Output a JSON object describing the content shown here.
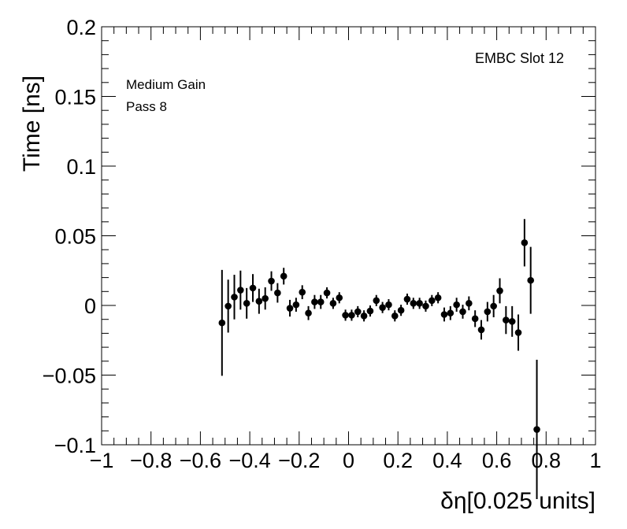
{
  "chart_data": {
    "type": "scatter",
    "xlabel": "δη[0.025 units]",
    "ylabel": "Time [ns]",
    "xlim": [
      -1,
      1
    ],
    "ylim": [
      -0.1,
      0.2
    ],
    "grid": false,
    "xticks": [
      {
        "value": -1,
        "label": "−1"
      },
      {
        "value": -0.8,
        "label": "−0.8"
      },
      {
        "value": -0.6,
        "label": "−0.6"
      },
      {
        "value": -0.4,
        "label": "−0.4"
      },
      {
        "value": -0.2,
        "label": "−0.2"
      },
      {
        "value": 0,
        "label": "0"
      },
      {
        "value": 0.2,
        "label": "0.2"
      },
      {
        "value": 0.4,
        "label": "0.4"
      },
      {
        "value": 0.6,
        "label": "0.6"
      },
      {
        "value": 0.8,
        "label": "0.8"
      },
      {
        "value": 1,
        "label": "1"
      }
    ],
    "yticks": [
      {
        "value": -0.1,
        "label": "−0.1"
      },
      {
        "value": -0.05,
        "label": "−0.05"
      },
      {
        "value": 0,
        "label": "0"
      },
      {
        "value": 0.05,
        "label": "0.05"
      },
      {
        "value": 0.1,
        "label": "0.1"
      },
      {
        "value": 0.15,
        "label": "0.15"
      },
      {
        "value": 0.2,
        "label": "0.2"
      }
    ],
    "annotations": {
      "top_left": [
        "Medium Gain",
        "Pass 8"
      ],
      "top_right": "EMBC Slot 12"
    },
    "series": [
      {
        "marker_color": "#000000",
        "points": [
          {
            "x": -0.5125,
            "y": -0.0125,
            "err": 0.038
          },
          {
            "x": -0.4875,
            "y": -0.0005,
            "err": 0.019
          },
          {
            "x": -0.4625,
            "y": 0.006,
            "err": 0.016
          },
          {
            "x": -0.4375,
            "y": 0.011,
            "err": 0.014
          },
          {
            "x": -0.4125,
            "y": 0.0015,
            "err": 0.011
          },
          {
            "x": -0.3875,
            "y": 0.0125,
            "err": 0.01
          },
          {
            "x": -0.3625,
            "y": 0.003,
            "err": 0.009
          },
          {
            "x": -0.3375,
            "y": 0.005,
            "err": 0.008
          },
          {
            "x": -0.3125,
            "y": 0.0175,
            "err": 0.007
          },
          {
            "x": -0.2875,
            "y": 0.009,
            "err": 0.007
          },
          {
            "x": -0.2625,
            "y": 0.021,
            "err": 0.006
          },
          {
            "x": -0.2375,
            "y": -0.002,
            "err": 0.006
          },
          {
            "x": -0.2125,
            "y": 0.0005,
            "err": 0.005
          },
          {
            "x": -0.1875,
            "y": 0.0095,
            "err": 0.005
          },
          {
            "x": -0.1625,
            "y": -0.0055,
            "err": 0.005
          },
          {
            "x": -0.1375,
            "y": 0.0025,
            "err": 0.005
          },
          {
            "x": -0.1125,
            "y": 0.0025,
            "err": 0.005
          },
          {
            "x": -0.0875,
            "y": 0.009,
            "err": 0.004
          },
          {
            "x": -0.0625,
            "y": 0.0015,
            "err": 0.004
          },
          {
            "x": -0.0375,
            "y": 0.0055,
            "err": 0.004
          },
          {
            "x": -0.0125,
            "y": -0.007,
            "err": 0.004
          },
          {
            "x": 0.0125,
            "y": -0.007,
            "err": 0.004
          },
          {
            "x": 0.0375,
            "y": -0.0045,
            "err": 0.004
          },
          {
            "x": 0.0625,
            "y": -0.0075,
            "err": 0.004
          },
          {
            "x": 0.0875,
            "y": -0.004,
            "err": 0.004
          },
          {
            "x": 0.1125,
            "y": 0.0035,
            "err": 0.004
          },
          {
            "x": 0.1375,
            "y": -0.0015,
            "err": 0.004
          },
          {
            "x": 0.1625,
            "y": 0.0005,
            "err": 0.004
          },
          {
            "x": 0.1875,
            "y": -0.0075,
            "err": 0.004
          },
          {
            "x": 0.2125,
            "y": -0.0035,
            "err": 0.004
          },
          {
            "x": 0.2375,
            "y": 0.0045,
            "err": 0.004
          },
          {
            "x": 0.2625,
            "y": 0.0015,
            "err": 0.004
          },
          {
            "x": 0.2875,
            "y": 0.0015,
            "err": 0.004
          },
          {
            "x": 0.3125,
            "y": -0.0005,
            "err": 0.004
          },
          {
            "x": 0.3375,
            "y": 0.0035,
            "err": 0.004
          },
          {
            "x": 0.3625,
            "y": 0.0055,
            "err": 0.004
          },
          {
            "x": 0.3875,
            "y": -0.0065,
            "err": 0.005
          },
          {
            "x": 0.4125,
            "y": -0.0055,
            "err": 0.005
          },
          {
            "x": 0.4375,
            "y": 0.0005,
            "err": 0.005
          },
          {
            "x": 0.4625,
            "y": -0.0045,
            "err": 0.005
          },
          {
            "x": 0.4875,
            "y": 0.0015,
            "err": 0.005
          },
          {
            "x": 0.5125,
            "y": -0.0095,
            "err": 0.006
          },
          {
            "x": 0.5375,
            "y": -0.0175,
            "err": 0.007
          },
          {
            "x": 0.5625,
            "y": -0.0045,
            "err": 0.007
          },
          {
            "x": 0.5875,
            "y": -0.0005,
            "err": 0.008
          },
          {
            "x": 0.6125,
            "y": 0.0105,
            "err": 0.009
          },
          {
            "x": 0.6375,
            "y": -0.0105,
            "err": 0.01
          },
          {
            "x": 0.6625,
            "y": -0.0115,
            "err": 0.011
          },
          {
            "x": 0.6875,
            "y": -0.0195,
            "err": 0.013
          },
          {
            "x": 0.7125,
            "y": 0.045,
            "err": 0.017
          },
          {
            "x": 0.7375,
            "y": 0.018,
            "err": 0.024
          },
          {
            "x": 0.7625,
            "y": -0.089,
            "err": 0.05
          }
        ]
      }
    ]
  }
}
